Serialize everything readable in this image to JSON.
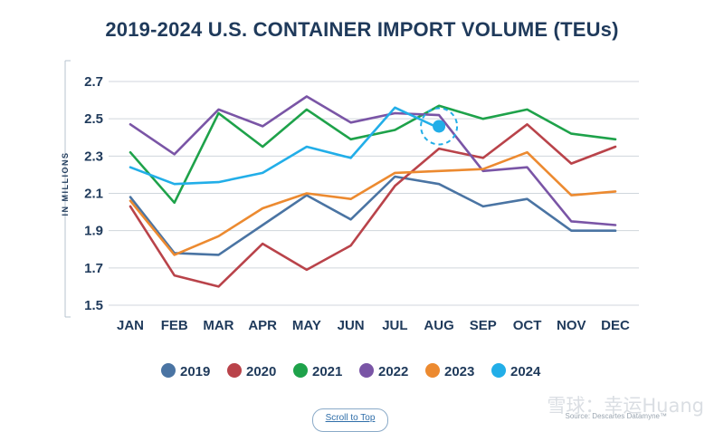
{
  "title": "2019-2024 U.S. CONTAINER IMPORT VOLUME (TEUs)",
  "scroll_button_label": "Scroll to Top",
  "source": "Source: Descartes Datamyne™",
  "watermark": "雪球：幸运Huang",
  "chart_data": {
    "type": "line",
    "title": "2019-2024 U.S. CONTAINER IMPORT VOLUME (TEUs)",
    "ylabel": "IN MILLIONS",
    "ylim": [
      1.5,
      2.7
    ],
    "yticks": [
      "2.7",
      "2.5",
      "2.3",
      "2.1",
      "1.9",
      "1.7",
      "1.5"
    ],
    "grid": true,
    "legend_position": "bottom",
    "categories": [
      "JAN",
      "FEB",
      "MAR",
      "APR",
      "MAY",
      "JUN",
      "JUL",
      "AUG",
      "SEP",
      "OCT",
      "NOV",
      "DEC"
    ],
    "series": [
      {
        "name": "2019",
        "color": "#4a74a3",
        "values": [
          2.08,
          1.78,
          1.77,
          1.93,
          2.09,
          1.96,
          2.19,
          2.15,
          2.03,
          2.07,
          1.9,
          1.9
        ]
      },
      {
        "name": "2020",
        "color": "#b9434a",
        "values": [
          2.03,
          1.66,
          1.6,
          1.83,
          1.69,
          1.82,
          2.14,
          2.34,
          2.29,
          2.47,
          2.26,
          2.35
        ]
      },
      {
        "name": "2021",
        "color": "#1ea24a",
        "values": [
          2.32,
          2.05,
          2.53,
          2.35,
          2.55,
          2.39,
          2.44,
          2.57,
          2.5,
          2.55,
          2.42,
          2.39
        ]
      },
      {
        "name": "2022",
        "color": "#7a55a6",
        "values": [
          2.47,
          2.31,
          2.55,
          2.46,
          2.62,
          2.48,
          2.53,
          2.52,
          2.22,
          2.24,
          1.95,
          1.93
        ]
      },
      {
        "name": "2023",
        "color": "#ec8a30",
        "values": [
          2.06,
          1.77,
          1.87,
          2.02,
          2.1,
          2.07,
          2.21,
          2.22,
          2.23,
          2.32,
          2.09,
          2.11
        ]
      },
      {
        "name": "2024",
        "color": "#22aee8",
        "values": [
          2.24,
          2.15,
          2.16,
          2.21,
          2.35,
          2.29,
          2.56,
          2.45,
          null,
          null,
          null,
          null
        ]
      }
    ]
  }
}
